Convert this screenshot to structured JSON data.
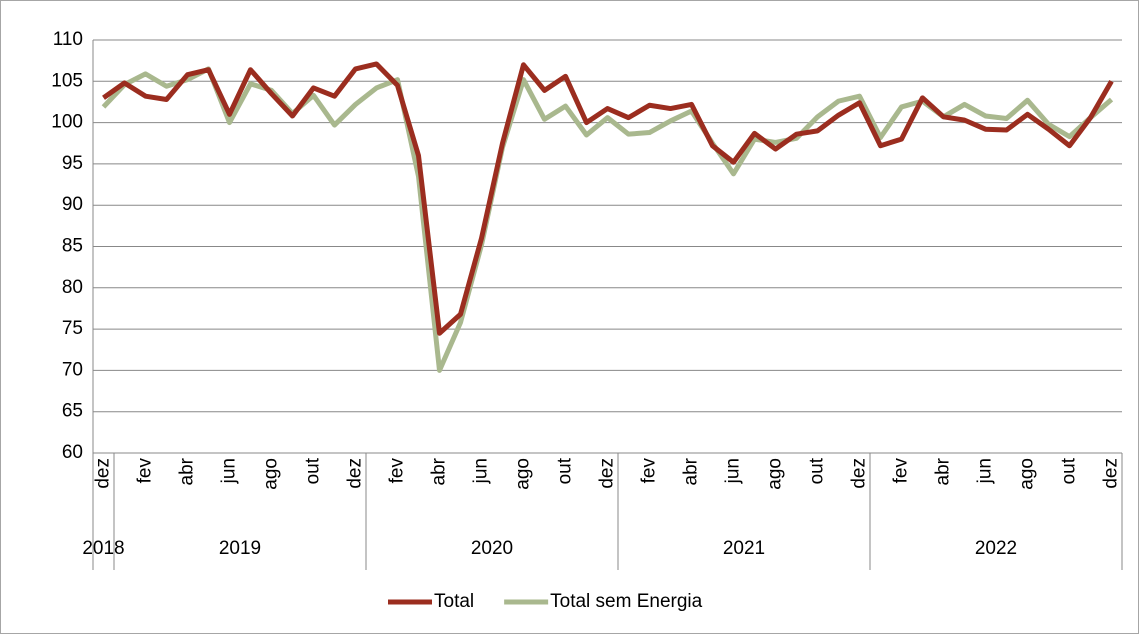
{
  "chart_data": {
    "type": "line",
    "categories": [
      "dez",
      null,
      "fev",
      null,
      "abr",
      null,
      "jun",
      null,
      "ago",
      null,
      "out",
      null,
      "dez",
      null,
      "fev",
      null,
      "abr",
      null,
      "jun",
      null,
      "ago",
      null,
      "out",
      null,
      "dez",
      null,
      "fev",
      null,
      "abr",
      null,
      "jun",
      null,
      "ago",
      null,
      "out",
      null,
      "dez",
      null,
      "fev",
      null,
      "abr",
      null,
      "jun",
      null,
      "ago",
      null,
      "out",
      null,
      "dez"
    ],
    "x_groups": [
      {
        "label": "2018",
        "size": 1
      },
      {
        "label": "2019",
        "size": 12
      },
      {
        "label": "2020",
        "size": 12
      },
      {
        "label": "2021",
        "size": 12
      },
      {
        "label": "2022",
        "size": 12
      }
    ],
    "series": [
      {
        "name": "Total",
        "color": "#9b2d1f",
        "values": [
          103.0,
          104.8,
          103.2,
          102.8,
          105.8,
          106.4,
          101.0,
          106.4,
          103.5,
          100.8,
          104.2,
          103.2,
          106.5,
          107.1,
          104.5,
          96.0,
          74.5,
          76.8,
          86.0,
          97.5,
          107.0,
          103.9,
          105.6,
          100.0,
          101.7,
          100.6,
          102.1,
          101.7,
          102.2,
          97.2,
          95.2,
          98.7,
          96.8,
          98.6,
          99.0,
          100.9,
          102.4,
          97.2,
          98.0,
          103.0,
          100.7,
          100.3,
          99.2,
          99.1,
          101.0,
          99.2,
          97.2,
          100.6,
          105.0
        ]
      },
      {
        "name": "Total sem Energia",
        "color": "#a9b88e",
        "values": [
          101.9,
          104.6,
          105.9,
          104.4,
          105.2,
          106.5,
          100.0,
          104.7,
          103.9,
          101.1,
          103.3,
          99.7,
          102.2,
          104.2,
          105.2,
          93.5,
          70.0,
          75.8,
          85.2,
          97.0,
          105.2,
          100.4,
          102.0,
          98.5,
          100.6,
          98.6,
          98.8,
          100.2,
          101.4,
          97.5,
          93.8,
          98.0,
          97.6,
          98.1,
          100.7,
          102.6,
          103.2,
          98.2,
          101.9,
          102.6,
          100.7,
          102.2,
          100.8,
          100.5,
          102.7,
          99.8,
          98.3,
          100.6,
          102.8
        ]
      }
    ],
    "ylim": [
      60,
      110
    ],
    "yticks": [
      60,
      65,
      70,
      75,
      80,
      85,
      90,
      95,
      100,
      105,
      110
    ],
    "grid": true,
    "legend": "bottom"
  }
}
